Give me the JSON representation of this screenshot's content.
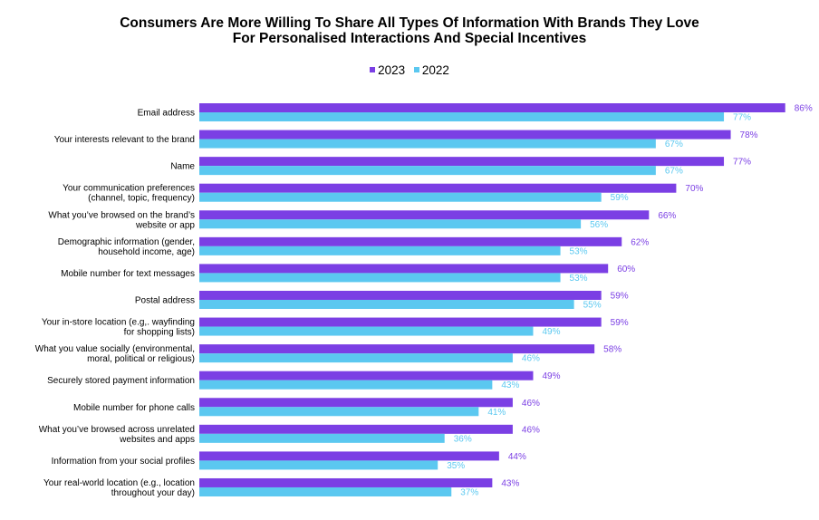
{
  "chart_data": {
    "type": "bar",
    "orientation": "horizontal",
    "title_lines": [
      "Consumers Are More Willing To Share All Types Of Information With Brands They Love",
      "For Personalised Interactions And Special Incentives"
    ],
    "legend_position": "top",
    "value_suffix": "%",
    "xlim": [
      0,
      100
    ],
    "grid": false,
    "categories": [
      [
        "Email address"
      ],
      [
        "Your interests relevant to the brand"
      ],
      [
        "Name"
      ],
      [
        "Your communication preferences",
        "(channel, topic, frequency)"
      ],
      [
        "What you’ve browsed on the brand’s",
        "website or app"
      ],
      [
        "Demographic information (gender,",
        "household income, age)"
      ],
      [
        "Mobile number for text messages"
      ],
      [
        "Postal address"
      ],
      [
        "Your in-store location (e.g,. wayfinding",
        "for shopping lists)"
      ],
      [
        "What you value socially (environmental,",
        "moral, political or religious)"
      ],
      [
        "Securely stored payment information"
      ],
      [
        "Mobile number for phone calls"
      ],
      [
        "What you’ve browsed across unrelated",
        "websites and apps"
      ],
      [
        "Information from your social profiles"
      ],
      [
        "Your real-world location (e.g., location",
        "throughout your day)"
      ]
    ],
    "series": [
      {
        "name": "2023",
        "color": "#7b3fe4",
        "label_color": "#7b3fe4",
        "values": [
          86,
          78,
          77,
          70,
          66,
          62,
          60,
          59,
          59,
          58,
          49,
          46,
          46,
          44,
          43
        ]
      },
      {
        "name": "2022",
        "color": "#5bc8f0",
        "label_color": "#5bc8f0",
        "values": [
          77,
          67,
          67,
          59,
          56,
          53,
          53,
          55,
          49,
          46,
          43,
          41,
          36,
          35,
          37
        ]
      }
    ]
  }
}
